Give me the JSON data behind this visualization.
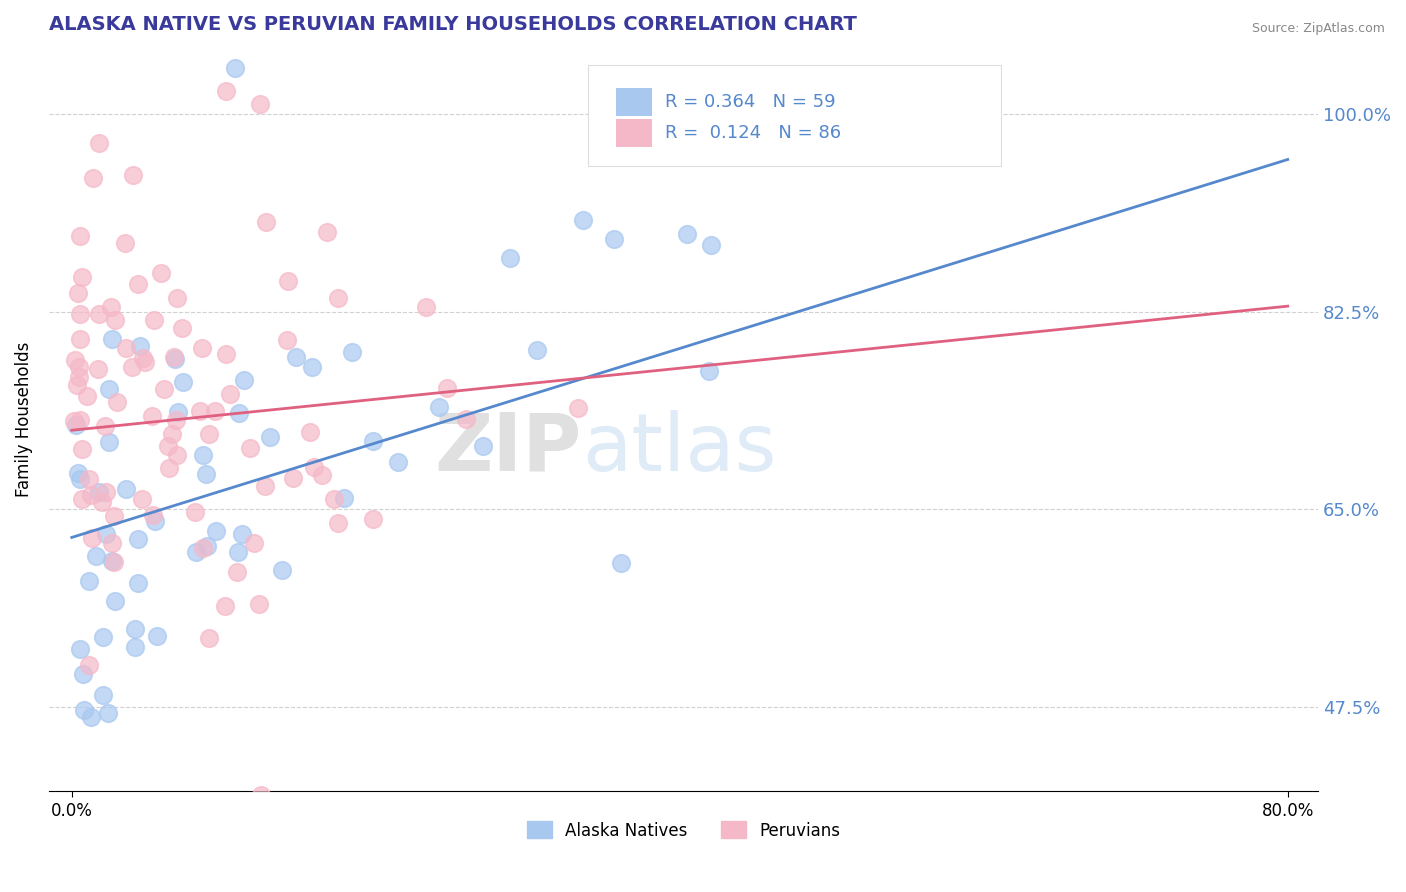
{
  "title": "ALASKA NATIVE VS PERUVIAN FAMILY HOUSEHOLDS CORRELATION CHART",
  "source": "Source: ZipAtlas.com",
  "ylabel": "Family Households",
  "xlim": [
    0.0,
    80.0
  ],
  "ylim": [
    40.0,
    106.0
  ],
  "ytick_values": [
    47.5,
    65.0,
    82.5,
    100.0
  ],
  "alaska_R": 0.364,
  "alaska_N": 59,
  "peruvian_R": 0.124,
  "peruvian_N": 86,
  "alaska_color": "#a8c8f0",
  "peruvian_color": "#f5b8c8",
  "alaska_line_color": "#5588cc",
  "peruvian_line_color": "#e06080",
  "background_color": "#ffffff",
  "grid_color": "#cccccc",
  "title_color": "#3a3a9c",
  "label_color": "#5588cc",
  "alaska_trend_x0": 0.0,
  "alaska_trend_y0": 62.5,
  "alaska_trend_x1": 80.0,
  "alaska_trend_y1": 96.0,
  "peruvian_trend_x0": 0.0,
  "peruvian_trend_y0": 72.0,
  "peruvian_trend_x1": 80.0,
  "peruvian_trend_y1": 83.0
}
